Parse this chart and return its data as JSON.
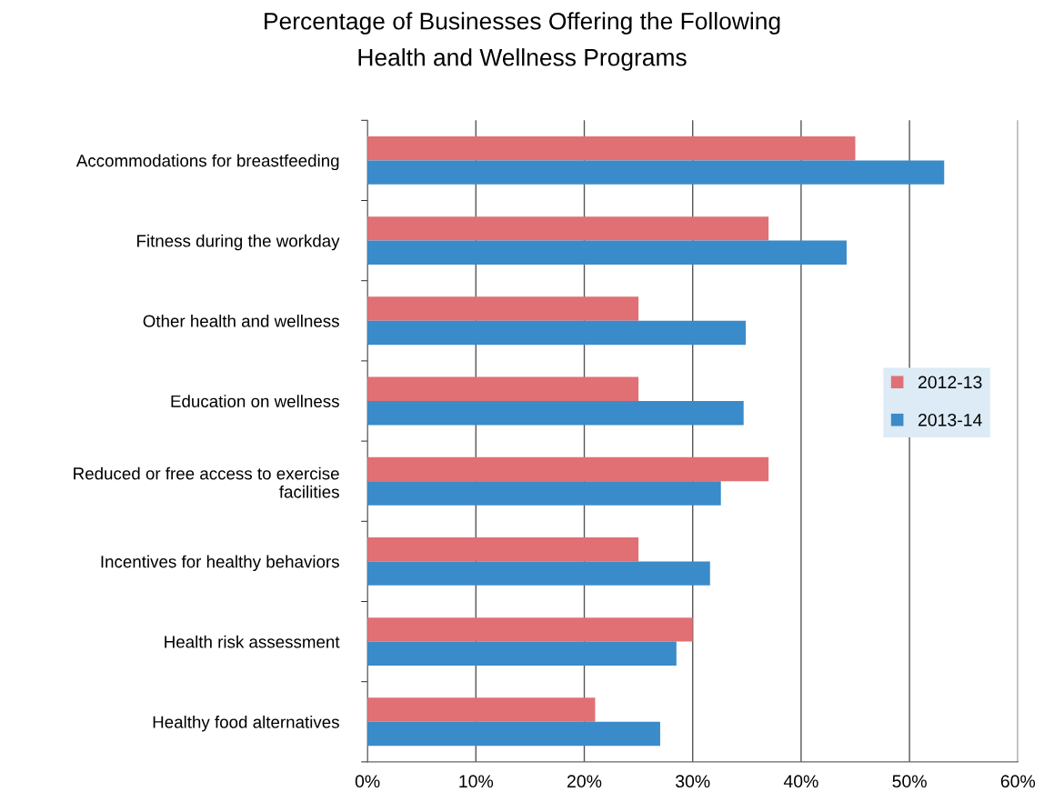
{
  "chart_data": {
    "type": "bar",
    "orientation": "horizontal",
    "title": "Percentage of Businesses Offering the Following\nHealth and Wellness Programs",
    "categories": [
      "Accommodations for breastfeeding",
      "Fitness during the workday",
      "Other health and wellness",
      "Education on wellness",
      "Reduced or free access to exercise\nfacilities",
      "Incentives for healthy behaviors",
      "Health risk assessment",
      "Healthy food alternatives"
    ],
    "series": [
      {
        "name": "2012-13",
        "color": "#e07074",
        "values": [
          45,
          37,
          25,
          25,
          37,
          25,
          30,
          21
        ]
      },
      {
        "name": "2013-14",
        "color": "#3a8bc9",
        "values": [
          53.2,
          44.2,
          34.9,
          34.7,
          32.6,
          31.6,
          28.5,
          27
        ]
      }
    ],
    "xlim": [
      0,
      60
    ],
    "xticks": [
      {
        "value": 0,
        "label": "0%"
      },
      {
        "value": 10,
        "label": "10%"
      },
      {
        "value": 20,
        "label": "20%"
      },
      {
        "value": 30,
        "label": "30%"
      },
      {
        "value": 40,
        "label": "40%"
      },
      {
        "value": 50,
        "label": "50%"
      },
      {
        "value": 60,
        "label": "60%"
      }
    ],
    "grid": "x",
    "legend": "right"
  }
}
